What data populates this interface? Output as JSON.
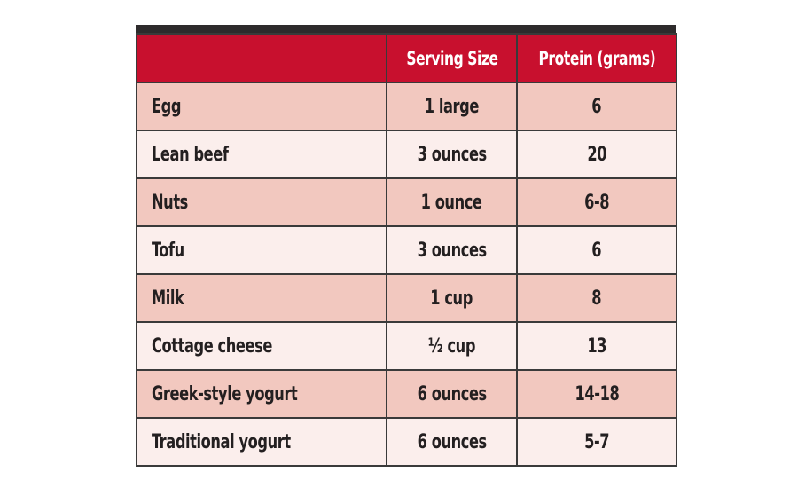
{
  "table": {
    "headers": [
      "",
      "Serving Size",
      "Protein (grams)"
    ],
    "rows": [
      {
        "food": "Egg",
        "serving": "1 large",
        "protein": "6"
      },
      {
        "food": "Lean beef",
        "serving": "3 ounces",
        "protein": "20"
      },
      {
        "food": "Nuts",
        "serving": "1 ounce",
        "protein": "6-8"
      },
      {
        "food": "Tofu",
        "serving": "3 ounces",
        "protein": "6"
      },
      {
        "food": "Milk",
        "serving": "1 cup",
        "protein": "8"
      },
      {
        "food": "Cottage cheese",
        "serving": "½ cup",
        "protein": "13"
      },
      {
        "food": "Greek-style yogurt",
        "serving": "6 ounces",
        "protein": "14-18"
      },
      {
        "food": "Traditional yogurt",
        "serving": "6 ounces",
        "protein": "5-7"
      }
    ]
  },
  "colors": {
    "header_bg": "#c8102e",
    "row_odd": "#f2c8bf",
    "row_even": "#fbeeec",
    "top_bar": "#2e2b2c"
  }
}
